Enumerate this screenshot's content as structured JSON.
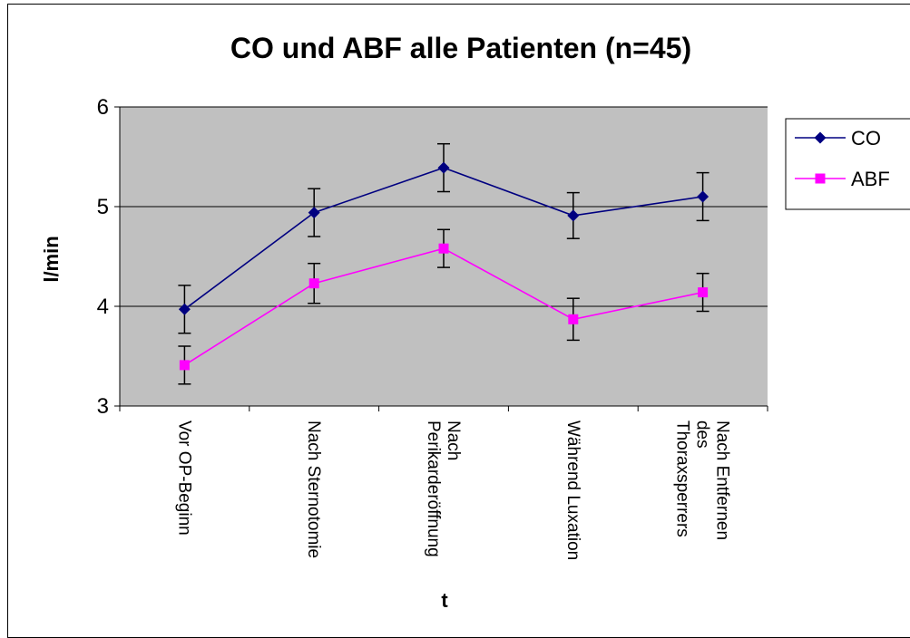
{
  "chart_data": {
    "type": "line",
    "title": "CO und ABF alle Patienten (n=45)",
    "xlabel": "t",
    "ylabel": "l/min",
    "ylim": [
      3,
      6
    ],
    "yticks": [
      3,
      4,
      5,
      6
    ],
    "grid": true,
    "legend": "right",
    "categories": [
      [
        "Vor OP-Beginn"
      ],
      [
        "Nach Sternotomie"
      ],
      [
        "Nach",
        "Perikarderöffnung"
      ],
      [
        "Während Luxation"
      ],
      [
        "Nach Entfernen",
        "des",
        "Thoraxsperrers"
      ]
    ],
    "series": [
      {
        "name": "CO",
        "color": "#000080",
        "marker": "diamond",
        "values": [
          3.97,
          4.94,
          5.39,
          4.91,
          5.1
        ],
        "error": [
          0.24,
          0.24,
          0.24,
          0.23,
          0.24
        ]
      },
      {
        "name": "ABF",
        "color": "#ff00ff",
        "marker": "square",
        "values": [
          3.41,
          4.23,
          4.58,
          3.87,
          4.14
        ],
        "error": [
          0.19,
          0.2,
          0.19,
          0.21,
          0.19
        ]
      }
    ]
  }
}
